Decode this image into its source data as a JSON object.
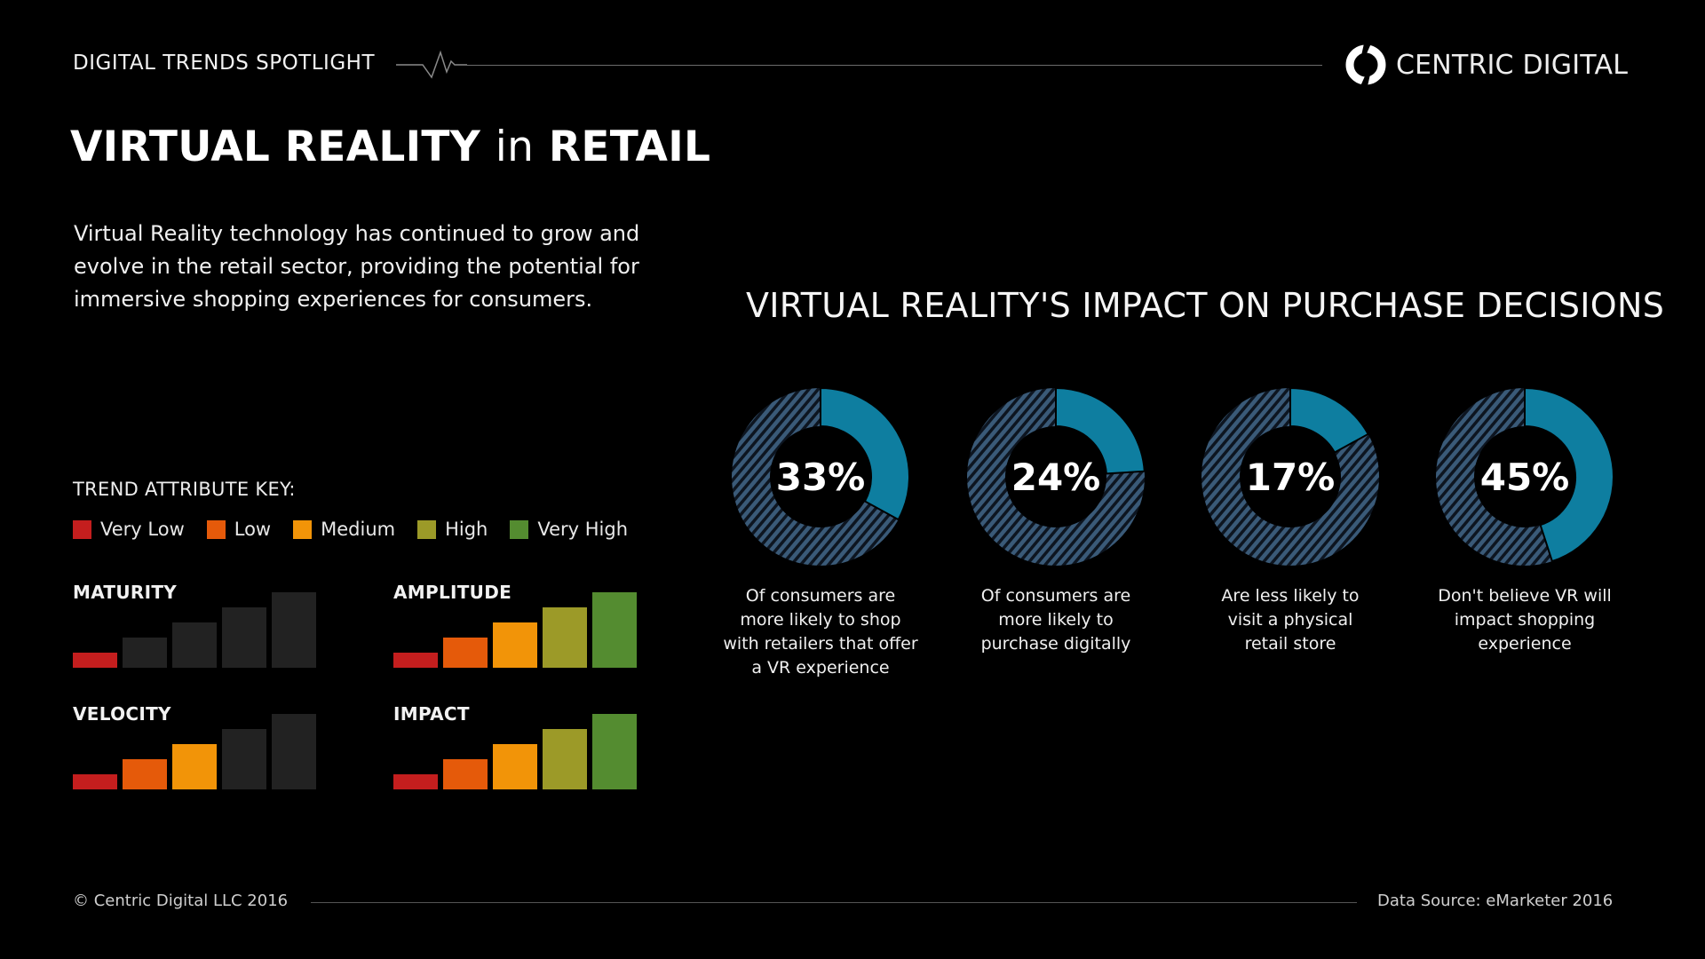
{
  "header": {
    "eyebrow": "DIGITAL TRENDS SPOTLIGHT",
    "brand": "CENTRIC DIGITAL",
    "icons": {
      "heartbeat": "heartbeat-line-icon",
      "logo": "centric-digital-logo-icon"
    }
  },
  "title": {
    "part1": "VIRTUAL REALITY",
    "part2": "in",
    "part3": "RETAIL"
  },
  "intro": "Virtual Reality technology has continued to grow and evolve in the retail sector, providing the potential for immersive shopping experiences for consumers.",
  "section_title": "VIRTUAL REALITY'S IMPACT ON PURCHASE DECISIONS",
  "colors": {
    "donut_solid": "#0e7ea0",
    "donut_hatch": "#3a5a78",
    "very_low": "#c41e1e",
    "low": "#e55a0a",
    "medium": "#f29408",
    "high": "#9c9a28",
    "very_high": "#548c30",
    "inactive": "#222222"
  },
  "stats": [
    {
      "value": "33%",
      "pct": 33,
      "caption": [
        "Of consumers are",
        "more likely to shop",
        "with retailers that offer",
        "a VR experience"
      ]
    },
    {
      "value": "24%",
      "pct": 24,
      "caption": [
        "Of consumers are",
        "more likely to",
        "purchase digitally"
      ]
    },
    {
      "value": "17%",
      "pct": 17,
      "caption": [
        "Are less likely to",
        "visit a physical",
        "retail store"
      ]
    },
    {
      "value": "45%",
      "pct": 45,
      "caption": [
        "Don't believe VR will",
        "impact shopping",
        "experience"
      ]
    }
  ],
  "key": {
    "heading": "TREND ATTRIBUTE KEY:",
    "levels": [
      {
        "label": "Very Low",
        "color": "#c41e1e"
      },
      {
        "label": "Low",
        "color": "#e55a0a"
      },
      {
        "label": "Medium",
        "color": "#f29408"
      },
      {
        "label": "High",
        "color": "#9c9a28"
      },
      {
        "label": "Very High",
        "color": "#548c30"
      }
    ]
  },
  "attributes": [
    {
      "name": "MATURITY",
      "level": 1
    },
    {
      "name": "AMPLITUDE",
      "level": 5
    },
    {
      "name": "VELOCITY",
      "level": 3
    },
    {
      "name": "IMPACT",
      "level": 5
    }
  ],
  "footer": {
    "copyright": "© Centric Digital LLC 2016",
    "source": "Data Source: eMarketer 2016"
  }
}
